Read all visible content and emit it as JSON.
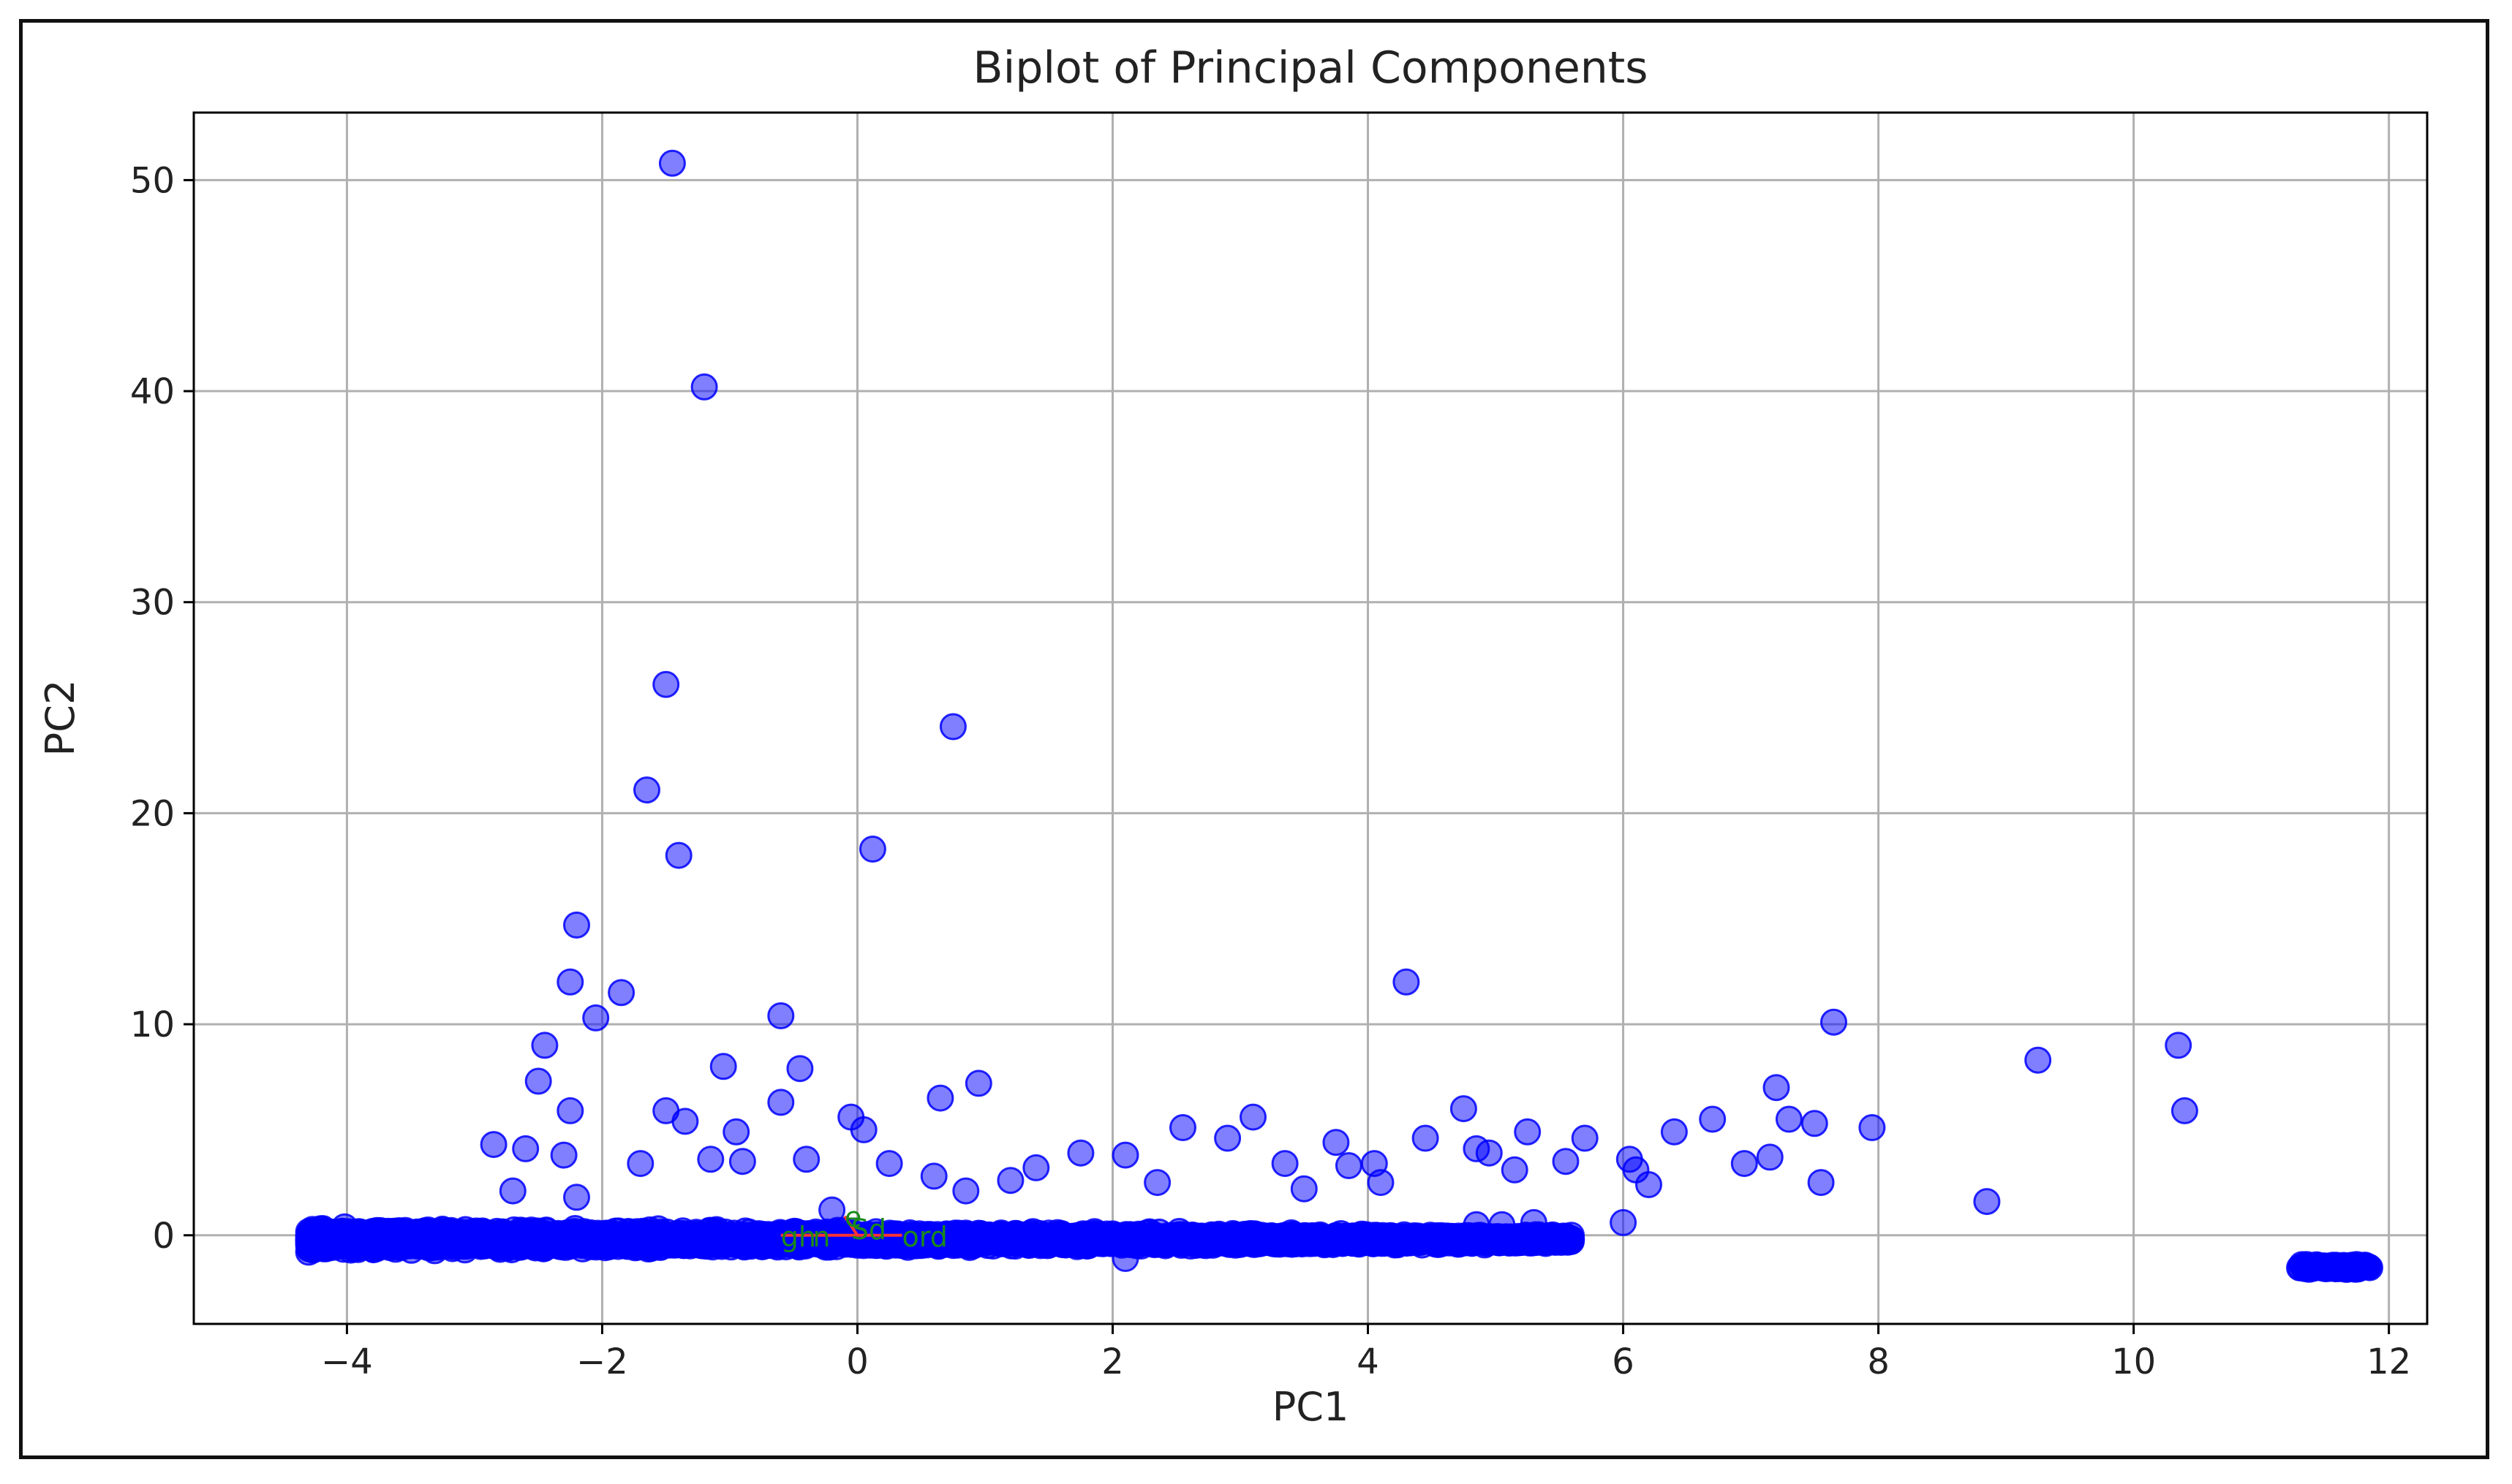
{
  "chart_data": {
    "type": "scatter",
    "title": "Biplot of Principal Components",
    "xlabel": "PC1",
    "ylabel": "PC2",
    "xlim": [
      -5.2,
      12.3
    ],
    "ylim": [
      -4.2,
      53.2
    ],
    "grid": true,
    "x_ticks": [
      -4,
      -2,
      0,
      2,
      4,
      6,
      8,
      10,
      12
    ],
    "y_ticks": [
      0,
      10,
      20,
      30,
      40,
      50
    ],
    "x_tick_labels": [
      "−4",
      "−2",
      "0",
      "2",
      "4",
      "6",
      "8",
      "10",
      "12"
    ],
    "y_tick_labels": [
      "0",
      "10",
      "20",
      "30",
      "40",
      "50"
    ],
    "colors": {
      "points": "#0000ff",
      "grid": "#b0b0b0",
      "loading_line": "#ff3333",
      "loading_text": "#1a8a1a"
    },
    "marker_alpha": 0.5,
    "series": [
      {
        "x": [
          -1.45,
          -1.2,
          -1.5,
          0.75,
          -1.65,
          0.12,
          -1.4,
          -2.2,
          -2.25,
          -1.85,
          -2.05,
          4.3,
          -0.6,
          -2.45,
          7.65,
          10.35,
          9.25,
          10.4,
          -1.05,
          -0.45,
          -2.5,
          -2.6,
          -0.95,
          0.65,
          -0.6,
          -2.25,
          -1.5,
          -1.35,
          -0.05,
          0.05,
          0.95,
          2.55,
          3.1,
          4.75,
          4.45,
          5.25,
          5.7,
          6.4,
          6.7,
          7.2,
          7.3,
          7.5,
          7.95,
          7.15,
          6.95,
          7.55,
          6.2,
          6.0,
          8.85,
          3.75,
          4.1,
          1.4,
          1.75,
          2.1,
          2.9,
          3.85,
          4.05,
          4.95,
          5.55,
          -2.85,
          -2.3,
          -1.7,
          -0.9,
          -0.4,
          0.25,
          0.6,
          1.2,
          2.35,
          3.35,
          4.85,
          5.15,
          -2.7,
          -1.15,
          0.85,
          3.5,
          5.3,
          4.85,
          5.05,
          6.05,
          6.1
        ],
        "y": [
          50.8,
          40.2,
          26.1,
          24.1,
          21.1,
          18.3,
          18.0,
          14.7,
          12.0,
          11.5,
          10.3,
          12.0,
          10.4,
          9.0,
          10.1,
          9.0,
          8.3,
          5.9,
          8.0,
          7.9,
          7.3,
          4.1,
          4.9,
          6.5,
          6.3,
          5.9,
          5.9,
          5.4,
          5.6,
          5.0,
          7.2,
          5.1,
          5.6,
          6.0,
          4.6,
          4.9,
          4.6,
          4.9,
          5.5,
          7.0,
          5.5,
          5.3,
          5.1,
          3.7,
          3.4,
          2.5,
          2.4,
          0.6,
          1.6,
          4.4,
          2.5,
          3.2,
          3.9,
          3.8,
          4.6,
          3.3,
          3.4,
          3.9,
          3.5,
          4.3,
          3.8,
          3.4,
          3.5,
          3.6,
          3.4,
          2.8,
          2.6,
          2.5,
          3.4,
          4.1,
          3.1,
          2.1,
          3.6,
          2.1,
          2.2,
          0.6,
          0.5,
          0.5,
          3.6,
          3.1
        ]
      }
    ],
    "dense_band": {
      "x_range": [
        -4.3,
        5.6
      ],
      "y_center": -0.2,
      "y_spread": 0.7,
      "n_points": 5000,
      "extra_points": [
        {
          "x": -4.3,
          "y": -0.8
        },
        {
          "x": 2.1,
          "y": -1.1
        },
        {
          "x": -2.2,
          "y": 1.8
        },
        {
          "x": -0.2,
          "y": 1.2
        }
      ]
    },
    "right_cluster": {
      "x_range": [
        11.3,
        11.85
      ],
      "y": -1.5,
      "n_points": 60
    },
    "annotations": [
      {
        "text": "gh",
        "x": -0.6,
        "y": -0.05
      },
      {
        "text": "n",
        "x": -0.35,
        "y": -0.05
      },
      {
        "text": "e",
        "x": -0.1,
        "y": 0.9
      },
      {
        "text": "Sd",
        "x": -0.05,
        "y": 0.3
      },
      {
        "text": "ord",
        "x": 0.35,
        "y": -0.05
      }
    ],
    "loading_lines": [
      {
        "x": [
          0.0,
          -0.6
        ],
        "y": [
          0.0,
          0.0
        ]
      },
      {
        "x": [
          0.0,
          0.35
        ],
        "y": [
          0.0,
          0.0
        ]
      },
      {
        "x": [
          0.0,
          -0.1
        ],
        "y": [
          0.0,
          0.9
        ]
      }
    ]
  }
}
